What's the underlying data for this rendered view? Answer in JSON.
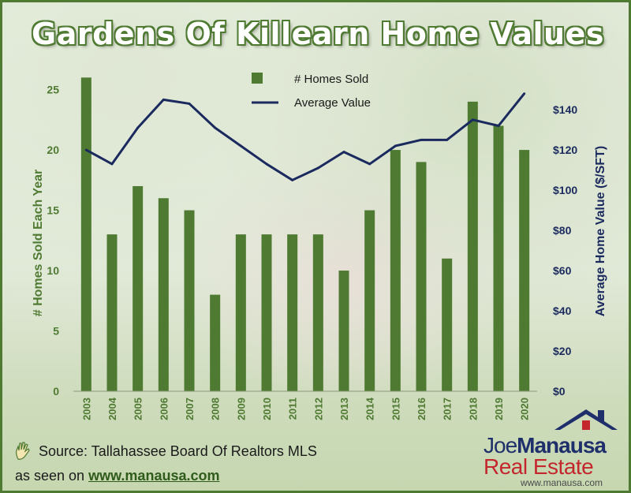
{
  "title": "Gardens Of Killearn Home Values",
  "colors": {
    "bar": "#4f7a32",
    "line": "#1b2a5e",
    "brand_red": "#c4262e",
    "brand_blue": "#1f2f6b"
  },
  "source_text": "Source: Tallahassee Board Of Realtors MLS",
  "seen_prefix": "as seen on",
  "seen_url": "www.manausa.com",
  "logo": {
    "name_part1": "Joe",
    "name_part2": "Manausa",
    "line2": "Real Estate",
    "url": "www.manausa.com"
  },
  "chart_data": {
    "type": "bar",
    "title": "Gardens Of Killearn Home Values",
    "categories": [
      "2003",
      "2004",
      "2005",
      "2006",
      "2007",
      "2008",
      "2009",
      "2010",
      "2011",
      "2012",
      "2013",
      "2014",
      "2015",
      "2016",
      "2017",
      "2018",
      "2019",
      "2020"
    ],
    "series": [
      {
        "name": "# Homes Sold",
        "type": "bar",
        "axis": "left",
        "values": [
          26,
          13,
          17,
          16,
          15,
          8,
          13,
          13,
          13,
          13,
          10,
          15,
          20,
          19,
          11,
          24,
          22,
          20
        ]
      },
      {
        "name": "Average Value",
        "type": "line",
        "axis": "right",
        "values": [
          120,
          113,
          131,
          145,
          143,
          131,
          122,
          113,
          105,
          111,
          119,
          113,
          122,
          125,
          125,
          135,
          132,
          148
        ]
      }
    ],
    "ylabel": "# Homes Sold Each Year",
    "ylim": [
      0,
      27
    ],
    "yticks": [
      "0",
      "5",
      "10",
      "15",
      "20",
      "25"
    ],
    "y2label": "Average Home Value ($/SFT)",
    "y2lim": [
      0,
      162
    ],
    "y2ticks": [
      "$0",
      "$20",
      "$40",
      "$60",
      "$80",
      "$100",
      "$120",
      "$140"
    ],
    "legend": [
      "# Homes Sold",
      "Average Value"
    ],
    "legend_position": "top-center"
  }
}
